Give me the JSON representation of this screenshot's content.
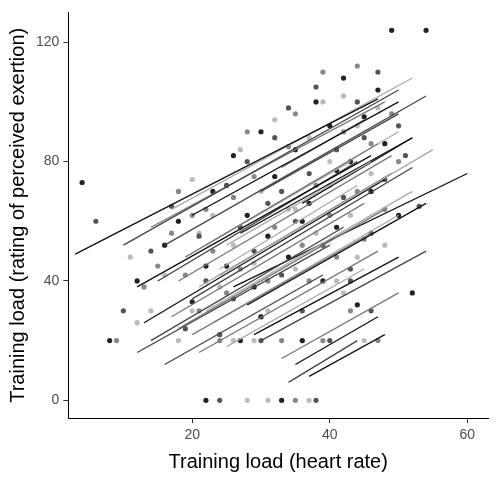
{
  "chart_data": {
    "type": "scatter",
    "x_label": "Training load (heart rate)",
    "y_label": "Training load (rating of perceived exertion)",
    "xlim": [
      2,
      63
    ],
    "ylim": [
      -6,
      130
    ],
    "xticks": [
      20,
      40,
      60
    ],
    "yticks": [
      0,
      40,
      80,
      120
    ],
    "grid": false,
    "series": [
      {
        "color": "#222222",
        "x": [
          4,
          8,
          12,
          16,
          18,
          20,
          22,
          23,
          25,
          26,
          27,
          28,
          29,
          30,
          31,
          32,
          33,
          34,
          35,
          36,
          37,
          38,
          39,
          40,
          41,
          42,
          43,
          44,
          45,
          46,
          47,
          48,
          49,
          50,
          52,
          54,
          22,
          30,
          36,
          41
        ],
        "values": [
          73,
          20,
          40,
          52,
          60,
          33,
          0,
          70,
          45,
          82,
          20,
          62,
          38,
          90,
          55,
          75,
          0,
          48,
          84,
          20,
          66,
          100,
          40,
          92,
          58,
          108,
          80,
          32,
          95,
          70,
          104,
          86,
          124,
          62,
          36,
          124,
          45,
          28,
          60,
          77
        ]
      },
      {
        "color": "#555555",
        "x": [
          6,
          10,
          14,
          17,
          19,
          21,
          22,
          24,
          25,
          26,
          28,
          29,
          30,
          31,
          32,
          33,
          34,
          35,
          36,
          37,
          38,
          39,
          40,
          41,
          42,
          43,
          44,
          45,
          46,
          47,
          48,
          50,
          51,
          53,
          24,
          27,
          33,
          38,
          43,
          46
        ],
        "values": [
          60,
          30,
          50,
          65,
          24,
          55,
          40,
          0,
          72,
          34,
          80,
          50,
          20,
          66,
          88,
          42,
          98,
          60,
          30,
          76,
          105,
          52,
          20,
          84,
          68,
          40,
          100,
          88,
          56,
          110,
          74,
          92,
          82,
          65,
          22,
          58,
          70,
          0,
          44,
          30
        ]
      },
      {
        "color": "#888888",
        "x": [
          9,
          13,
          15,
          17,
          18,
          20,
          21,
          23,
          24,
          26,
          27,
          28,
          29,
          31,
          32,
          33,
          34,
          35,
          36,
          37,
          38,
          39,
          40,
          41,
          42,
          43,
          44,
          45,
          46,
          48,
          49,
          50,
          47,
          35,
          30,
          25,
          22,
          19,
          44,
          39
        ],
        "values": [
          20,
          38,
          45,
          56,
          70,
          62,
          30,
          50,
          20,
          68,
          44,
          90,
          75,
          40,
          58,
          20,
          85,
          96,
          52,
          40,
          72,
          110,
          62,
          48,
          90,
          30,
          70,
          54,
          86,
          64,
          96,
          80,
          20,
          0,
          28,
          36,
          64,
          42,
          112,
          20
        ]
      },
      {
        "color": "#bbbbbb",
        "x": [
          11,
          14,
          16,
          18,
          20,
          21,
          23,
          24,
          26,
          27,
          28,
          29,
          30,
          31,
          32,
          34,
          35,
          36,
          37,
          38,
          39,
          40,
          41,
          42,
          43,
          44,
          45,
          46,
          47,
          48,
          12,
          26,
          31,
          35,
          40,
          44,
          29,
          37,
          42,
          20
        ],
        "values": [
          48,
          30,
          42,
          20,
          74,
          56,
          62,
          38,
          52,
          84,
          0,
          46,
          70,
          30,
          94,
          64,
          44,
          20,
          88,
          56,
          100,
          72,
          40,
          102,
          62,
          92,
          20,
          76,
          98,
          52,
          26,
          20,
          0,
          64,
          80,
          48,
          20,
          0,
          36,
          30
        ]
      }
    ],
    "lines": [
      {
        "color": "#111111",
        "x": [
          3,
          47
        ],
        "values": [
          49,
          101
        ]
      },
      {
        "color": "#444444",
        "x": [
          10,
          50
        ],
        "values": [
          52,
          104
        ]
      },
      {
        "color": "#777777",
        "x": [
          14,
          48
        ],
        "values": [
          58,
          100
        ]
      },
      {
        "color": "#aaaaaa",
        "x": [
          17,
          52
        ],
        "values": [
          64,
          108
        ]
      },
      {
        "color": "#111111",
        "x": [
          20,
          50
        ],
        "values": [
          62,
          100
        ]
      },
      {
        "color": "#444444",
        "x": [
          16,
          54
        ],
        "values": [
          52,
          102
        ]
      },
      {
        "color": "#777777",
        "x": [
          19,
          47
        ],
        "values": [
          48,
          86
        ]
      },
      {
        "color": "#aaaaaa",
        "x": [
          22,
          50
        ],
        "values": [
          52,
          90
        ]
      },
      {
        "color": "#111111",
        "x": [
          12,
          46
        ],
        "values": [
          38,
          82
        ]
      },
      {
        "color": "#444444",
        "x": [
          15,
          44
        ],
        "values": [
          40,
          80
        ]
      },
      {
        "color": "#777777",
        "x": [
          18,
          49
        ],
        "values": [
          40,
          82
        ]
      },
      {
        "color": "#aaaaaa",
        "x": [
          25,
          46
        ],
        "values": [
          52,
          80
        ]
      },
      {
        "color": "#111111",
        "x": [
          13,
          48
        ],
        "values": [
          26,
          74
        ]
      },
      {
        "color": "#444444",
        "x": [
          20,
          52
        ],
        "values": [
          34,
          78
        ]
      },
      {
        "color": "#777777",
        "x": [
          17,
          45
        ],
        "values": [
          28,
          66
        ]
      },
      {
        "color": "#aaaaaa",
        "x": [
          21,
          55
        ],
        "values": [
          38,
          84
        ]
      },
      {
        "color": "#111111",
        "x": [
          24,
          49
        ],
        "values": [
          42,
          76
        ]
      },
      {
        "color": "#444444",
        "x": [
          14,
          42
        ],
        "values": [
          20,
          58
        ]
      },
      {
        "color": "#777777",
        "x": [
          18,
          48
        ],
        "values": [
          24,
          64
        ]
      },
      {
        "color": "#aaaaaa",
        "x": [
          22,
          52
        ],
        "values": [
          30,
          70
        ]
      },
      {
        "color": "#111111",
        "x": [
          26,
          60
        ],
        "values": [
          38,
          76
        ]
      },
      {
        "color": "#444444",
        "x": [
          12,
          40
        ],
        "values": [
          16,
          52
        ]
      },
      {
        "color": "#777777",
        "x": [
          20,
          46
        ],
        "values": [
          22,
          56
        ]
      },
      {
        "color": "#aaaaaa",
        "x": [
          23,
          50
        ],
        "values": [
          26,
          62
        ]
      },
      {
        "color": "#111111",
        "x": [
          28,
          54
        ],
        "values": [
          32,
          66
        ]
      },
      {
        "color": "#444444",
        "x": [
          16,
          39
        ],
        "values": [
          12,
          42
        ]
      },
      {
        "color": "#777777",
        "x": [
          21,
          47
        ],
        "values": [
          16,
          50
        ]
      },
      {
        "color": "#aaaaaa",
        "x": [
          25,
          45
        ],
        "values": [
          18,
          44
        ]
      },
      {
        "color": "#111111",
        "x": [
          29,
          50
        ],
        "values": [
          22,
          48
        ]
      },
      {
        "color": "#444444",
        "x": [
          30,
          54
        ],
        "values": [
          20,
          50
        ]
      },
      {
        "color": "#777777",
        "x": [
          33,
          50
        ],
        "values": [
          14,
          36
        ]
      },
      {
        "color": "#111111",
        "x": [
          35,
          47
        ],
        "values": [
          12,
          28
        ]
      },
      {
        "color": "#444444",
        "x": [
          34,
          44
        ],
        "values": [
          6,
          20
        ]
      },
      {
        "color": "#111111",
        "x": [
          37,
          48
        ],
        "values": [
          8,
          22
        ]
      },
      {
        "color": "#aaaaaa",
        "x": [
          24,
          44
        ],
        "values": [
          44,
          72
        ]
      },
      {
        "color": "#111111",
        "x": [
          27,
          52
        ],
        "values": [
          56,
          88
        ]
      },
      {
        "color": "#444444",
        "x": [
          30,
          50
        ],
        "values": [
          70,
          96
        ]
      },
      {
        "color": "#777777",
        "x": [
          33,
          45
        ],
        "values": [
          78,
          94
        ]
      },
      {
        "color": "#aaaaaa",
        "x": [
          28,
          43
        ],
        "values": [
          60,
          80
        ]
      },
      {
        "color": "#111111",
        "x": [
          36,
          52
        ],
        "values": [
          66,
          88
        ]
      }
    ]
  }
}
